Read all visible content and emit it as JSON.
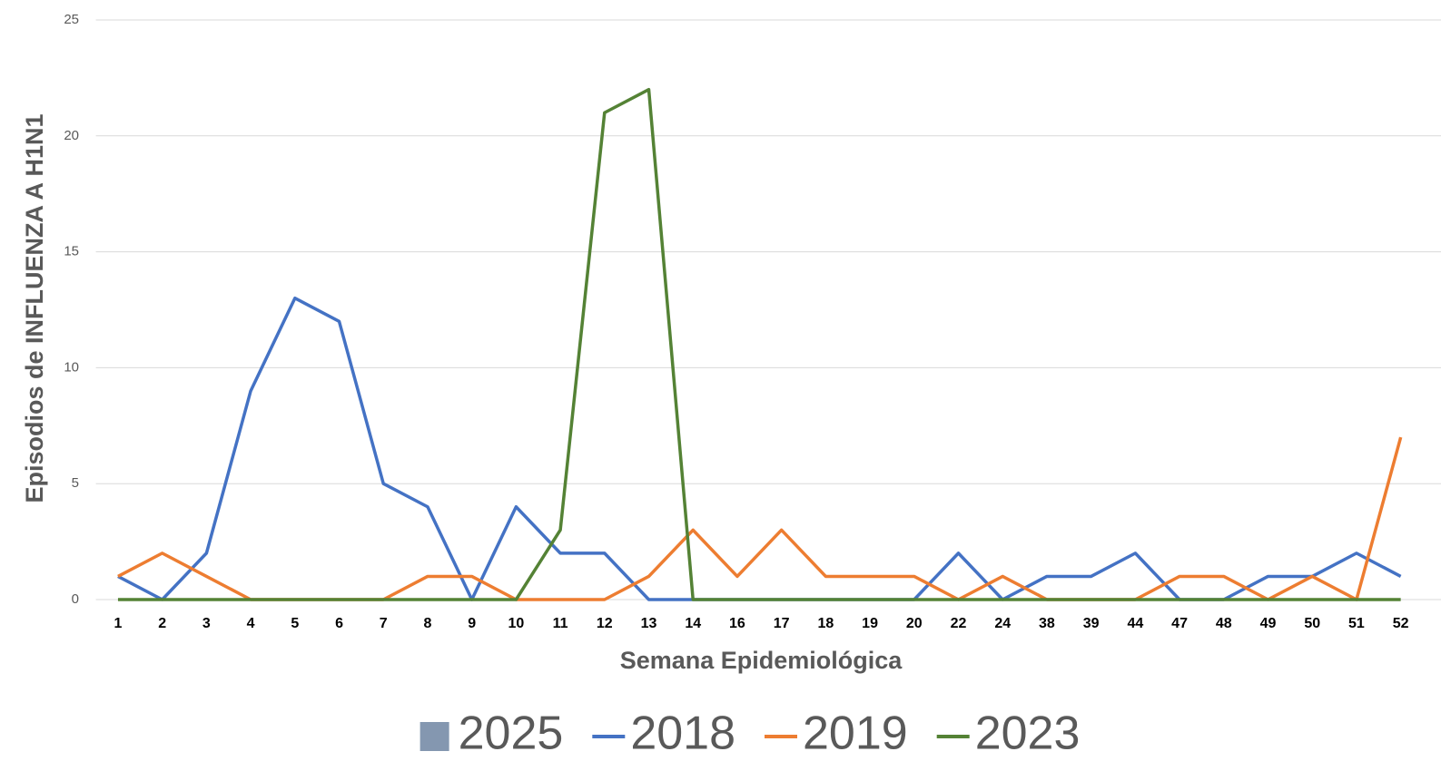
{
  "chart_data": {
    "type": "line",
    "x_label": "Semana Epidemiológica",
    "y_label": "Episodios de INFLUENZA A H1N1",
    "categories": [
      "1",
      "2",
      "3",
      "4",
      "5",
      "6",
      "7",
      "8",
      "9",
      "10",
      "11",
      "12",
      "13",
      "14",
      "16",
      "17",
      "18",
      "19",
      "20",
      "22",
      "24",
      "38",
      "39",
      "44",
      "47",
      "48",
      "49",
      "50",
      "51",
      "52"
    ],
    "ylim": [
      0,
      25
    ],
    "yticks": [
      0,
      5,
      10,
      15,
      20,
      25
    ],
    "grid": true,
    "legend": "bottom",
    "series": [
      {
        "name": "2025",
        "type": "bar",
        "color": "#8497b0",
        "values": [
          0,
          0,
          0,
          0,
          0,
          0,
          0,
          0,
          0,
          0,
          0,
          0,
          0,
          0,
          0,
          0,
          0,
          0,
          0,
          0,
          0,
          0,
          0,
          0,
          0,
          0,
          0,
          0,
          0,
          0
        ]
      },
      {
        "name": "2018",
        "color": "#4472c4",
        "values": [
          1,
          0,
          2,
          9,
          13,
          12,
          5,
          4,
          0,
          4,
          2,
          2,
          0,
          0,
          0,
          0,
          0,
          0,
          0,
          2,
          0,
          1,
          1,
          2,
          0,
          0,
          1,
          1,
          2,
          1
        ]
      },
      {
        "name": "2019",
        "color": "#ed7d31",
        "values": [
          1,
          2,
          1,
          0,
          0,
          0,
          0,
          1,
          1,
          0,
          0,
          0,
          1,
          3,
          1,
          3,
          1,
          1,
          1,
          0,
          1,
          0,
          0,
          0,
          1,
          1,
          0,
          1,
          0,
          7
        ]
      },
      {
        "name": "2023",
        "color": "#548235",
        "values": [
          0,
          0,
          0,
          0,
          0,
          0,
          0,
          0,
          0,
          0,
          3,
          21,
          22,
          0,
          0,
          0,
          0,
          0,
          0,
          0,
          0,
          0,
          0,
          0,
          0,
          0,
          0,
          0,
          0,
          0
        ]
      }
    ]
  }
}
